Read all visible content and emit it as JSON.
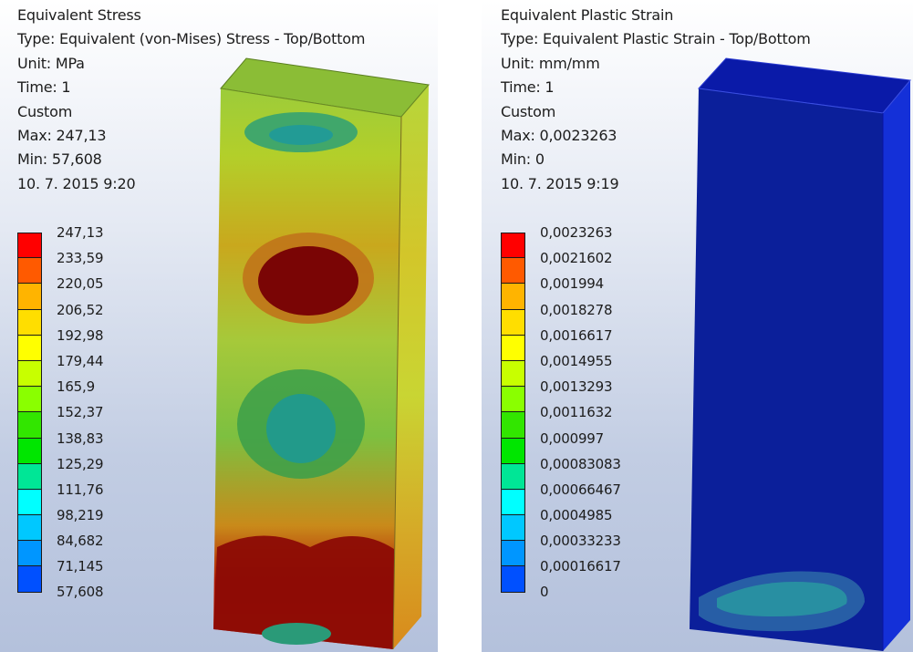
{
  "panels": [
    {
      "title": "Equivalent Stress",
      "type_line": "Type: Equivalent (von-Mises) Stress - Top/Bottom",
      "unit_line": "Unit: MPa",
      "time_line": "Time: 1",
      "custom_line": "Custom",
      "max_line": "Max: 247,13",
      "min_line": "Min: 57,608",
      "date_line": "10. 7. 2015 9:20",
      "legend_values": [
        "247,13",
        "233,59",
        "220,05",
        "206,52",
        "192,98",
        "179,44",
        "165,9",
        "152,37",
        "138,83",
        "125,29",
        "111,76",
        "98,219",
        "84,682",
        "71,145",
        "57,608"
      ]
    },
    {
      "title": "Equivalent Plastic Strain",
      "type_line": "Type: Equivalent Plastic Strain - Top/Bottom",
      "unit_line": "Unit: mm/mm",
      "time_line": "Time: 1",
      "custom_line": "Custom",
      "max_line": "Max: 0,0023263",
      "min_line": "Min: 0",
      "date_line": "10. 7. 2015 9:19",
      "legend_values": [
        "0,0023263",
        "0,0021602",
        "0,001994",
        "0,0018278",
        "0,0016617",
        "0,0014955",
        "0,0013293",
        "0,0011632",
        "0,000997",
        "0,00083083",
        "0,00066467",
        "0,0004985",
        "0,00033233",
        "0,00016617",
        "0"
      ]
    }
  ],
  "legend_colors": [
    "#ff0000",
    "#ff5a00",
    "#ffb400",
    "#ffde00",
    "#ffff00",
    "#c8ff00",
    "#8aff00",
    "#32e600",
    "#00e600",
    "#00e696",
    "#00ffff",
    "#00c8ff",
    "#0096ff",
    "#0050ff",
    "#0000ff"
  ]
}
